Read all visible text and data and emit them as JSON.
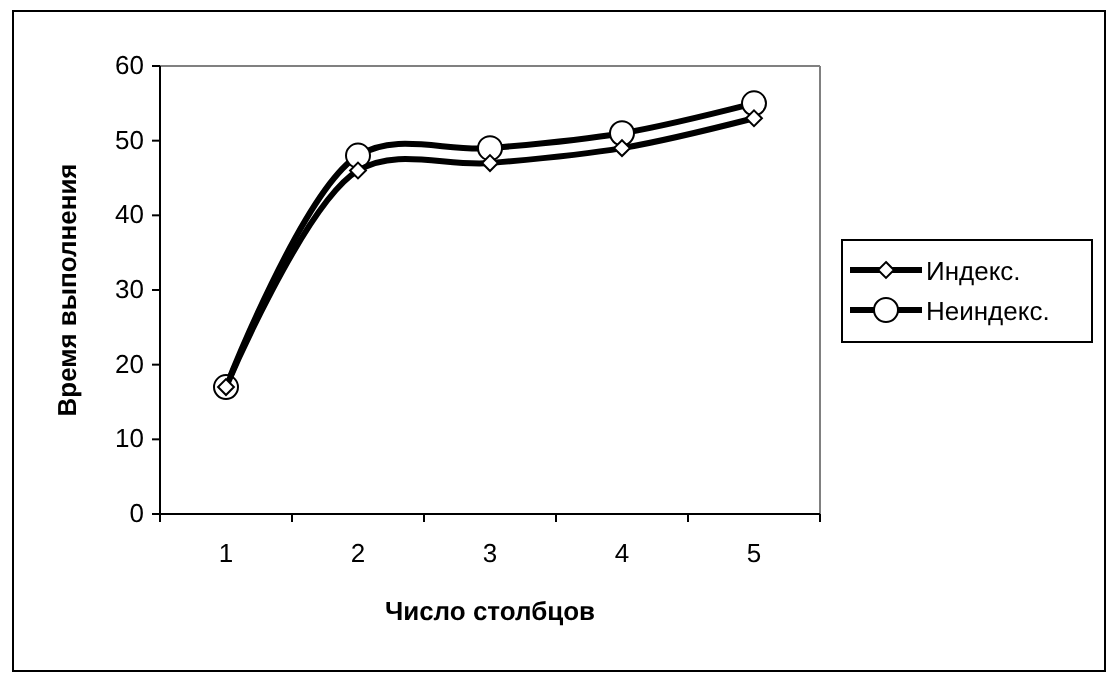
{
  "chart_data": {
    "type": "line",
    "xlabel": "Число столбцов",
    "ylabel": "Время выполнения",
    "categories": [
      "1",
      "2",
      "3",
      "4",
      "5"
    ],
    "series": [
      {
        "name": "Индекс.",
        "color": "#000000",
        "marker": "diamond",
        "values": [
          17,
          46,
          47,
          49,
          53
        ]
      },
      {
        "name": "Неиндекс.",
        "color": "#000000",
        "marker": "circle",
        "values": [
          17,
          48,
          49,
          51,
          55
        ]
      }
    ],
    "ylim": [
      0,
      60
    ],
    "yticks": [
      0,
      10,
      20,
      30,
      40,
      50,
      60
    ],
    "grid": false,
    "legend": "right",
    "line_style": "solid"
  }
}
